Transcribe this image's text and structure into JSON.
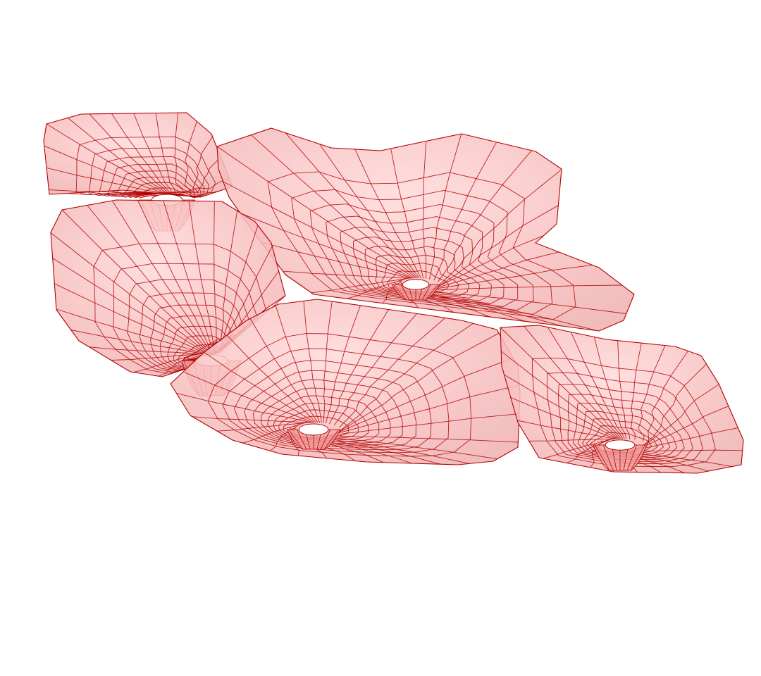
{
  "scene": {
    "surface_color": "#f6b8b8",
    "surface_highlight": "#ffdada",
    "mesh_line_color": "#b30000",
    "background_color": "#ffffff",
    "surfaces": [
      {
        "name": "funnel-surface-top-left",
        "shading": "pink-translucent"
      },
      {
        "name": "funnel-surface-top-right",
        "shading": "pink-translucent"
      },
      {
        "name": "funnel-surface-middle-left",
        "shading": "pink-translucent"
      },
      {
        "name": "funnel-surface-bottom-center",
        "shading": "pink-translucent"
      },
      {
        "name": "funnel-surface-bottom-right",
        "shading": "pink-translucent"
      }
    ]
  }
}
